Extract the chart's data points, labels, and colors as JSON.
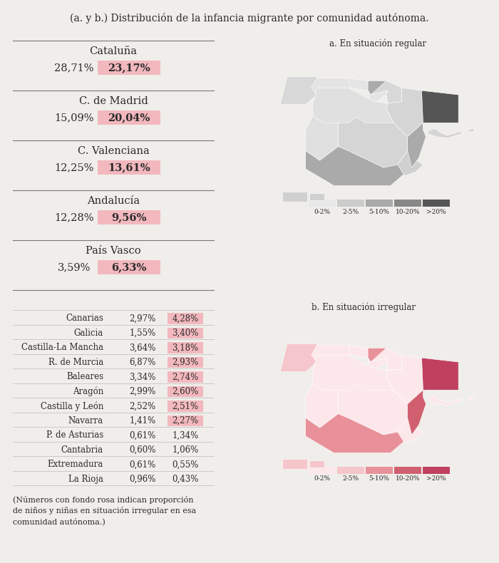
{
  "title": "(a. y b.) Distribución de la infancia migrante por comunidad autónoma.",
  "bg_color": "#f0eeea",
  "text_color": "#2a2a2a",
  "pink_bg": "#f2b8be",
  "map_label_a": "a. En situación regular",
  "map_label_b": "b. En situación irregular",
  "top_regions": [
    {
      "name": "Cataluña",
      "reg": "28,71%",
      "irreg": "23,17%"
    },
    {
      "name": "C. de Madrid",
      "reg": "15,09%",
      "irreg": "20,04%"
    },
    {
      "name": "C. Valenciana",
      "reg": "12,25%",
      "irreg": "13,61%"
    },
    {
      "name": "Andalucía",
      "reg": "12,28%",
      "irreg": "9,56%"
    },
    {
      "name": "País Vasco",
      "reg": "3,59%",
      "irreg": "6,33%"
    }
  ],
  "bottom_regions": [
    {
      "name": "Canarias",
      "reg": "2,97%",
      "irreg": "4,28%"
    },
    {
      "name": "Galicia",
      "reg": "1,55%",
      "irreg": "3,40%"
    },
    {
      "name": "Castilla-La Mancha",
      "reg": "3,64%",
      "irreg": "3,18%"
    },
    {
      "name": "R. de Murcia",
      "reg": "6,87%",
      "irreg": "2,93%"
    },
    {
      "name": "Baleares",
      "reg": "3,34%",
      "irreg": "2,74%"
    },
    {
      "name": "Aragón",
      "reg": "2,99%",
      "irreg": "2,60%"
    },
    {
      "name": "Castilla y León",
      "reg": "2,52%",
      "irreg": "2,51%"
    },
    {
      "name": "Navarra",
      "reg": "1,41%",
      "irreg": "2,27%"
    },
    {
      "name": "P. de Asturias",
      "reg": "0,61%",
      "irreg": "1,34%"
    },
    {
      "name": "Cantabria",
      "reg": "0,60%",
      "irreg": "1,06%"
    },
    {
      "name": "Extremadura",
      "reg": "0,61%",
      "irreg": "0,55%"
    },
    {
      "name": "La Rioja",
      "reg": "0,96%",
      "irreg": "0,43%"
    }
  ],
  "footnote": "(Números con fondo rosa indican proporción\nde niños y niñas en situación irregular en esa\ncomunidad autónoma.)",
  "legend_labels": [
    "0-2%",
    "2-5%",
    "5-10%",
    "10-20%",
    ">20%"
  ],
  "gray_colors": [
    "#e8e8e8",
    "#cccccc",
    "#aaaaaa",
    "#888888",
    "#555555"
  ],
  "pink_colors": [
    "#fce8ea",
    "#f5c6cb",
    "#e8919a",
    "#d06070",
    "#c04060"
  ]
}
